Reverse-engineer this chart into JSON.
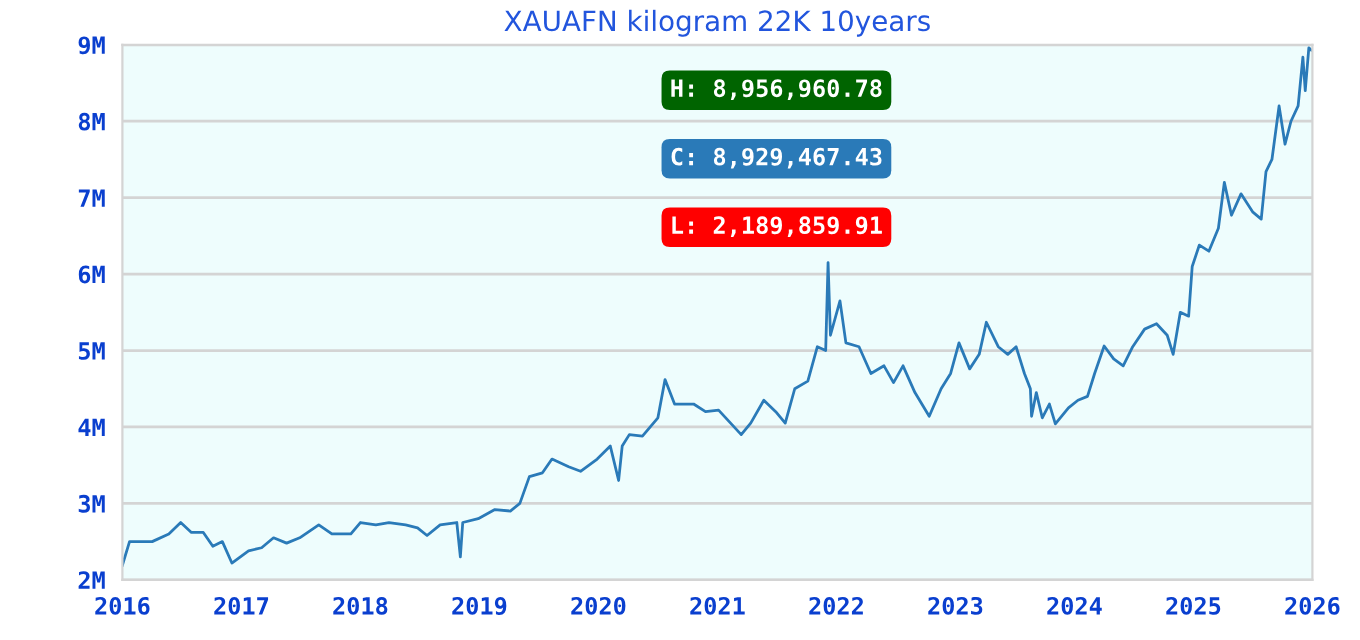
{
  "chart_data": {
    "type": "line",
    "title": "XAUAFN kilogram 22K 10years",
    "annotations": [
      "H: 8,956,960.78",
      "C: 8,929,467.43",
      "L: 2,189,859.91"
    ],
    "xlim": [
      2016,
      2026
    ],
    "xticks": [
      2016,
      2017,
      2018,
      2019,
      2020,
      2021,
      2022,
      2023,
      2024,
      2025,
      2026
    ],
    "ylim": [
      2,
      9
    ],
    "yticks": [
      {
        "value": 2,
        "label": "2M"
      },
      {
        "value": 3,
        "label": "3M"
      },
      {
        "value": 4,
        "label": "4M"
      },
      {
        "value": 5,
        "label": "5M"
      },
      {
        "value": 6,
        "label": "6M"
      },
      {
        "value": 7,
        "label": "7M"
      },
      {
        "value": 8,
        "label": "8M"
      },
      {
        "value": 9,
        "label": "9M"
      }
    ],
    "grid": "y",
    "legend": false,
    "series": [
      {
        "color": "#2a7ab8",
        "x": [
          2016.0,
          2016.06,
          2016.25,
          2016.39,
          2016.49,
          2016.58,
          2016.68,
          2016.76,
          2016.84,
          2016.92,
          2017.06,
          2017.17,
          2017.27,
          2017.38,
          2017.49,
          2017.65,
          2017.76,
          2017.92,
          2018.0,
          2018.13,
          2018.24,
          2018.38,
          2018.48,
          2018.56,
          2018.67,
          2018.81,
          2018.84,
          2018.86,
          2018.99,
          2019.13,
          2019.26,
          2019.34,
          2019.42,
          2019.53,
          2019.61,
          2019.75,
          2019.85,
          2019.99,
          2020.1,
          2020.17,
          2020.2,
          2020.26,
          2020.37,
          2020.5,
          2020.56,
          2020.64,
          2020.8,
          2020.9,
          2021.01,
          2021.2,
          2021.28,
          2021.39,
          2021.49,
          2021.57,
          2021.65,
          2021.76,
          2021.84,
          2021.91,
          2021.93,
          2021.95,
          2022.03,
          2022.08,
          2022.19,
          2022.29,
          2022.4,
          2022.48,
          2022.56,
          2022.66,
          2022.78,
          2022.88,
          2022.96,
          2023.03,
          2023.12,
          2023.2,
          2023.26,
          2023.36,
          2023.44,
          2023.51,
          2023.58,
          2023.63,
          2023.64,
          2023.68,
          2023.73,
          2023.79,
          2023.84,
          2023.95,
          2024.03,
          2024.11,
          2024.17,
          2024.25,
          2024.33,
          2024.41,
          2024.49,
          2024.59,
          2024.69,
          2024.78,
          2024.83,
          2024.89,
          2024.96,
          2024.99,
          2025.05,
          2025.13,
          2025.21,
          2025.26,
          2025.32,
          2025.4,
          2025.5,
          2025.57,
          2025.61,
          2025.66,
          2025.72,
          2025.77,
          2025.82,
          2025.88,
          2025.92,
          2025.94,
          2025.97,
          2025.99
        ],
        "values": [
          2.19,
          2.5,
          2.5,
          2.6,
          2.75,
          2.62,
          2.62,
          2.44,
          2.5,
          2.22,
          2.38,
          2.42,
          2.55,
          2.48,
          2.55,
          2.72,
          2.6,
          2.6,
          2.75,
          2.72,
          2.75,
          2.72,
          2.68,
          2.58,
          2.72,
          2.75,
          2.3,
          2.75,
          2.8,
          2.92,
          2.9,
          3.0,
          3.35,
          3.4,
          3.58,
          3.48,
          3.42,
          3.58,
          3.75,
          3.3,
          3.75,
          3.9,
          3.88,
          4.12,
          4.62,
          4.3,
          4.3,
          4.2,
          4.22,
          3.9,
          4.05,
          4.35,
          4.2,
          4.05,
          4.5,
          4.6,
          5.05,
          5.0,
          6.15,
          5.2,
          5.65,
          5.1,
          5.05,
          4.7,
          4.8,
          4.58,
          4.8,
          4.45,
          4.14,
          4.5,
          4.7,
          5.1,
          4.76,
          4.95,
          5.37,
          5.05,
          4.95,
          5.05,
          4.7,
          4.5,
          4.14,
          4.45,
          4.12,
          4.3,
          4.04,
          4.25,
          4.35,
          4.4,
          4.7,
          5.06,
          4.89,
          4.8,
          5.05,
          5.28,
          5.35,
          5.2,
          4.95,
          5.5,
          5.45,
          6.1,
          6.38,
          6.3,
          6.6,
          7.2,
          6.77,
          7.05,
          6.81,
          6.72,
          7.34,
          7.5,
          8.2,
          7.7,
          8.0,
          8.2,
          8.84,
          8.4,
          8.96,
          8.93
        ]
      }
    ]
  }
}
